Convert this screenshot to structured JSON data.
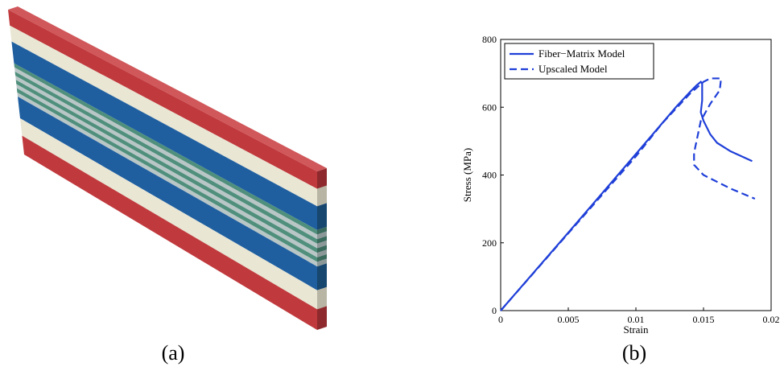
{
  "captions": [
    "(a)",
    "(b)"
  ],
  "chart_data": {
    "type": "line",
    "xlabel": "Strain",
    "ylabel": "Stress (MPa)",
    "xlim": [
      0,
      0.02
    ],
    "ylim": [
      0,
      800
    ],
    "xticks": [
      0,
      0.005,
      0.01,
      0.015,
      0.02
    ],
    "yticks": [
      0,
      200,
      400,
      600,
      800
    ],
    "legend": "upper-left",
    "series": [
      {
        "name": "Fiber−Matrix Model",
        "color": "#1f3fd8",
        "style": "solid",
        "x": [
          0,
          0.005,
          0.01,
          0.013,
          0.014,
          0.0145,
          0.0148,
          0.0149,
          0.0149,
          0.0148,
          0.015,
          0.0155,
          0.016,
          0.017,
          0.0186
        ],
        "values": [
          0,
          230,
          462,
          602,
          645,
          665,
          675,
          670,
          620,
          585,
          560,
          520,
          495,
          470,
          441
        ]
      },
      {
        "name": "Upscaled Model",
        "color": "#1f3fd8",
        "style": "dashed",
        "x": [
          0,
          0.005,
          0.01,
          0.012,
          0.014,
          0.015,
          0.0155,
          0.0163,
          0.0162,
          0.0155,
          0.0148,
          0.0143,
          0.0143,
          0.015,
          0.016,
          0.017,
          0.0188
        ],
        "values": [
          0,
          228,
          455,
          555,
          640,
          675,
          685,
          685,
          650,
          610,
          560,
          465,
          430,
          400,
          380,
          360,
          330
        ]
      }
    ]
  }
}
